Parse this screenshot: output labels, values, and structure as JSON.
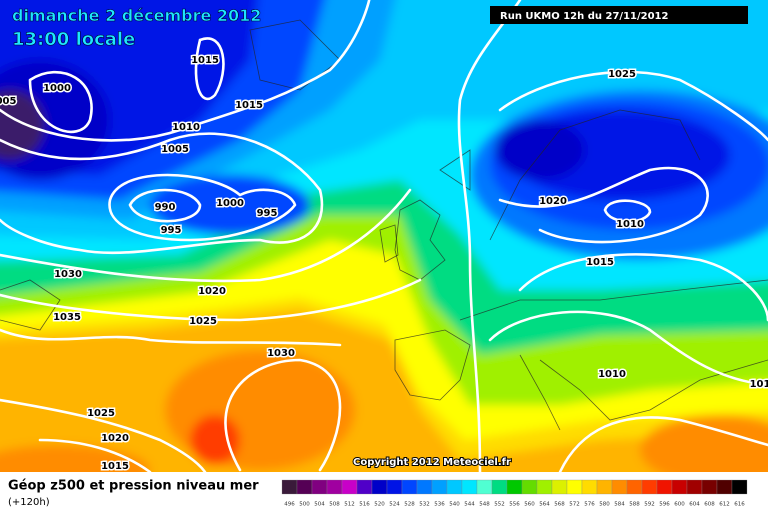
{
  "header": {
    "date": "dimanche 2 décembre 2012",
    "time": "13:00 locale",
    "run": "Run UKMO 12h du 27/11/2012"
  },
  "isobar_labels": [
    1015,
    1000,
    "005",
    1015,
    1010,
    1005,
    990,
    1000,
    995,
    995,
    1030,
    1020,
    1035,
    1025,
    1030,
    1025,
    1020,
    1015,
    1025,
    1020,
    1010,
    1015,
    1010,
    "101"
  ],
  "copyright": "Copyright 2012 Meteociel.fr",
  "footer": {
    "title": "Géop z500 et pression niveau mer",
    "lead": "(+120h)"
  },
  "legend": {
    "items": [
      {
        "label": 496,
        "color": "#3a1a3a"
      },
      {
        "label": 500,
        "color": "#550055"
      },
      {
        "label": 504,
        "color": "#800080"
      },
      {
        "label": 508,
        "color": "#a000a0"
      },
      {
        "label": 512,
        "color": "#c800c8"
      },
      {
        "label": 516,
        "color": "#5000c8"
      },
      {
        "label": 520,
        "color": "#0000c8"
      },
      {
        "label": 524,
        "color": "#0014e6"
      },
      {
        "label": 528,
        "color": "#0046ff"
      },
      {
        "label": 532,
        "color": "#0078ff"
      },
      {
        "label": 536,
        "color": "#00a0ff"
      },
      {
        "label": 540,
        "color": "#00c8ff"
      },
      {
        "label": 544,
        "color": "#00e6ff"
      },
      {
        "label": 548,
        "color": "#50ffd2"
      },
      {
        "label": 552,
        "color": "#00dc82"
      },
      {
        "label": 556,
        "color": "#00c800"
      },
      {
        "label": 560,
        "color": "#64dc00"
      },
      {
        "label": 564,
        "color": "#a0f000"
      },
      {
        "label": 568,
        "color": "#dcf000"
      },
      {
        "label": 572,
        "color": "#ffff00"
      },
      {
        "label": 576,
        "color": "#ffdc00"
      },
      {
        "label": 580,
        "color": "#ffb400"
      },
      {
        "label": 584,
        "color": "#ff8c00"
      },
      {
        "label": 588,
        "color": "#ff6400"
      },
      {
        "label": 592,
        "color": "#ff3c00"
      },
      {
        "label": 596,
        "color": "#f01400"
      },
      {
        "label": 600,
        "color": "#c80000"
      },
      {
        "label": 604,
        "color": "#a00000"
      },
      {
        "label": 608,
        "color": "#780000"
      },
      {
        "label": 612,
        "color": "#500000"
      },
      {
        "label": 616,
        "color": "#000000"
      }
    ]
  }
}
